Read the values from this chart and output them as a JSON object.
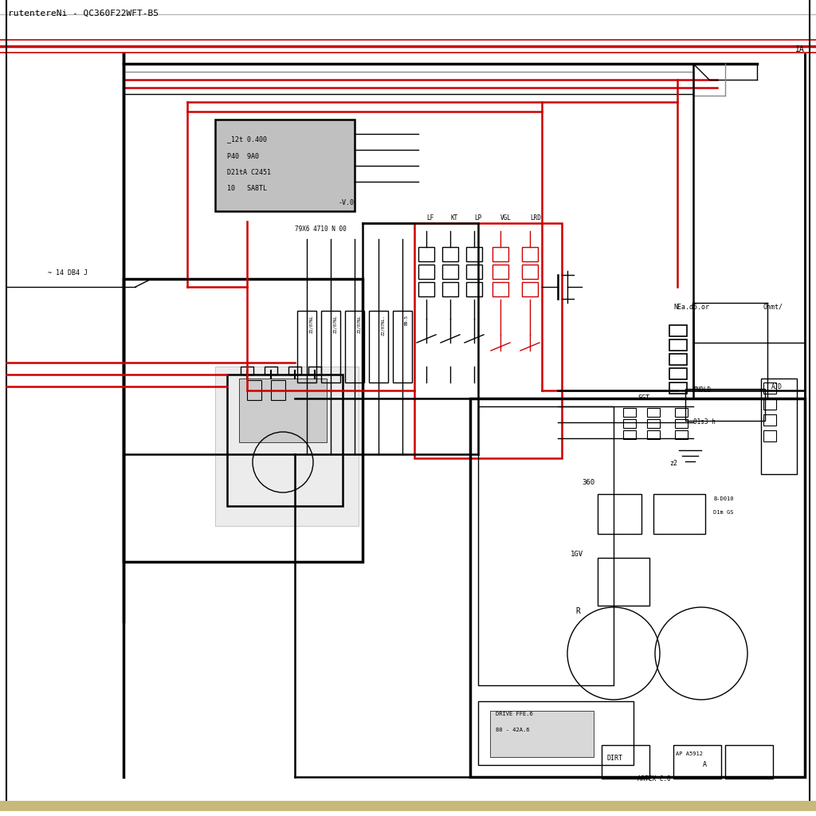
{
  "title": "rutentereNi - QC360F22WFT-B5",
  "bg_color": "#ffffff",
  "line_black": "#000000",
  "line_red": "#cc0000",
  "line_gray": "#888888",
  "border_tan": "#c8b87a",
  "label_IA": "IA",
  "reg_labels": [
    "_12t 0.400",
    "P40  9A0",
    "D21tA C2451",
    "10   SA8TL"
  ],
  "relay_labels": [
    "LF",
    "KT",
    "LP",
    "VGL",
    "LRD"
  ],
  "fuse_labels": [
    "Z2/07NL",
    "Z2/07NL",
    "Z2/07NL",
    "Z2/07NL.",
    "B9.5"
  ],
  "fuse_top_label": "79X6 4710 N 00"
}
